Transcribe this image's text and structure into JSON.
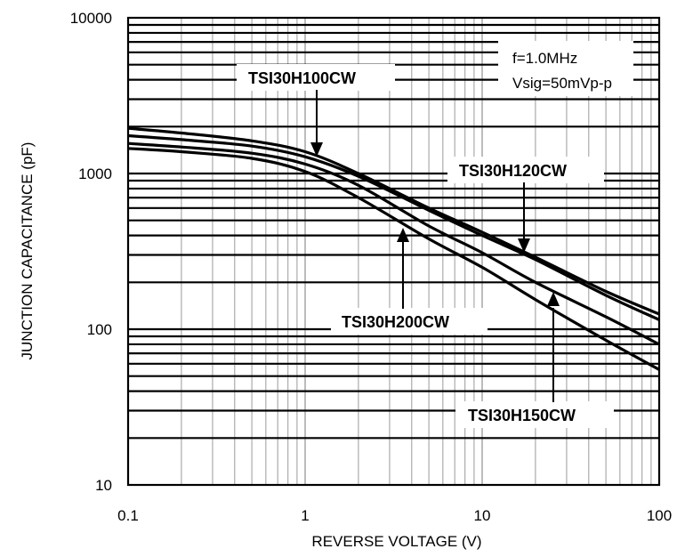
{
  "chart_data": {
    "type": "line",
    "xlabel": "REVERSE VOLTAGE (V)",
    "ylabel": "JUNCTION CAPACITANCE (pF)",
    "x_scale": "log",
    "y_scale": "log",
    "xlim": [
      0.1,
      100
    ],
    "ylim": [
      10,
      10000
    ],
    "grid": true,
    "x_ticks": [
      "0.1",
      "1",
      "10",
      "100"
    ],
    "y_ticks": [
      "10",
      "100",
      "1000",
      "10000"
    ],
    "conditions": [
      "f=1.0MHz",
      "Vsig=50mVp-p"
    ],
    "series": [
      {
        "name": "TSI30H100CW",
        "x": [
          0.1,
          0.2,
          0.5,
          1,
          2,
          5,
          10,
          20,
          50,
          100
        ],
        "y": [
          1950,
          1820,
          1620,
          1380,
          1000,
          600,
          420,
          290,
          175,
          125
        ]
      },
      {
        "name": "TSI30H120CW",
        "x": [
          0.1,
          0.2,
          0.5,
          1,
          2,
          5,
          10,
          20,
          50,
          100
        ],
        "y": [
          1750,
          1650,
          1500,
          1280,
          960,
          580,
          400,
          280,
          165,
          115
        ]
      },
      {
        "name": "TSI30H150CW",
        "x": [
          0.1,
          0.2,
          0.5,
          1,
          2,
          5,
          10,
          20,
          50,
          100
        ],
        "y": [
          1560,
          1480,
          1350,
          1150,
          840,
          460,
          310,
          200,
          120,
          80
        ]
      },
      {
        "name": "TSI30H200CW",
        "x": [
          0.1,
          0.2,
          0.5,
          1,
          2,
          5,
          10,
          20,
          50,
          100
        ],
        "y": [
          1450,
          1380,
          1250,
          1030,
          700,
          380,
          250,
          155,
          85,
          55
        ]
      }
    ]
  }
}
